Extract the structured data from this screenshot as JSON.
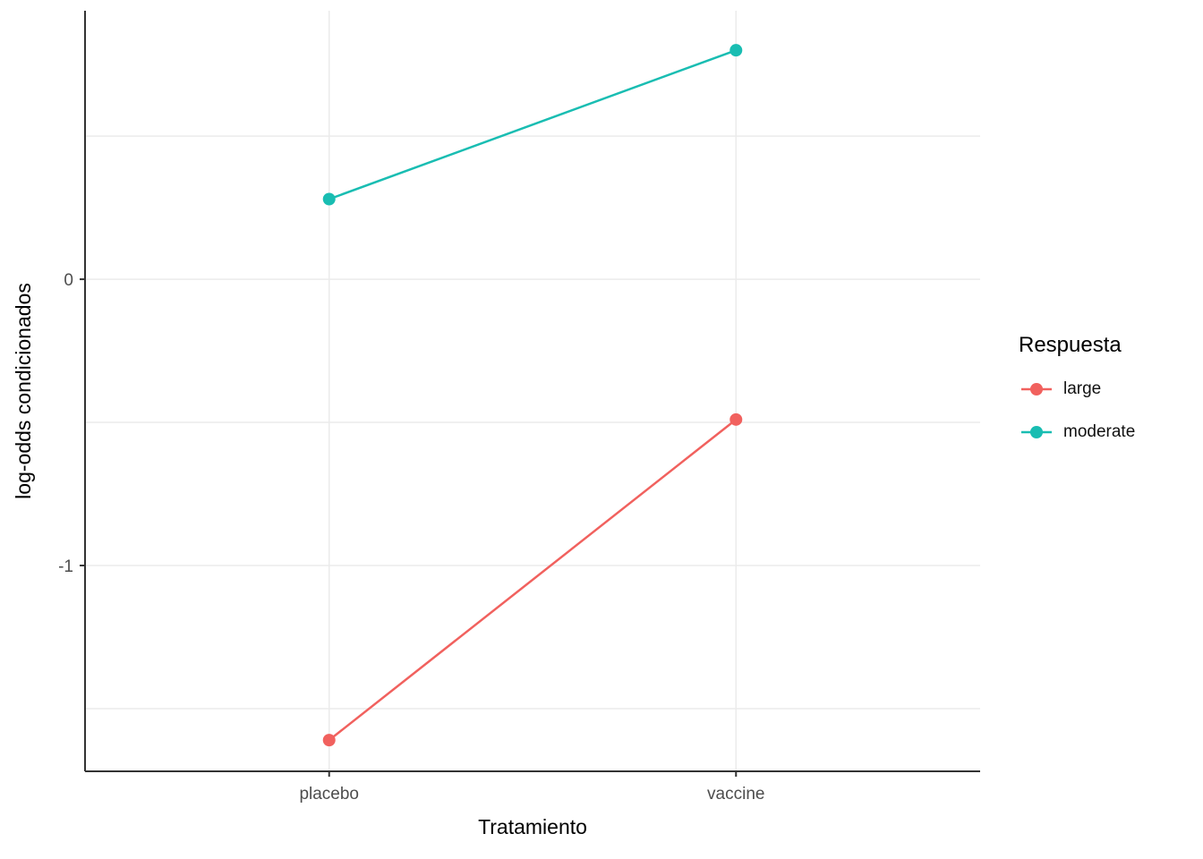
{
  "chart_data": {
    "type": "line",
    "title": "",
    "xlabel": "Tratamiento",
    "ylabel": "log-odds condicionados",
    "categories": [
      "placebo",
      "vaccine"
    ],
    "series": [
      {
        "name": "large",
        "color": "#F1615E",
        "values": [
          -1.61,
          -0.49
        ]
      },
      {
        "name": "moderate",
        "color": "#19BDB2",
        "values": [
          0.28,
          0.8
        ]
      }
    ],
    "ylim": [
      -1.719,
      0.938
    ],
    "yticks": [
      {
        "value": 0,
        "label": "0"
      },
      {
        "value": -1,
        "label": "-1"
      }
    ],
    "y_gridlines": [
      0.5,
      0,
      -0.5,
      -1,
      -1.5
    ],
    "legend": {
      "title": "Respuesta",
      "position": "right",
      "entries": [
        "large",
        "moderate"
      ]
    },
    "grid": "on",
    "panel_background": "#FFFFFF",
    "gridline_color": "#EBEBEB",
    "axis_color": "#333333",
    "text_color": "#4D4D4D",
    "title_color": "#000000"
  }
}
